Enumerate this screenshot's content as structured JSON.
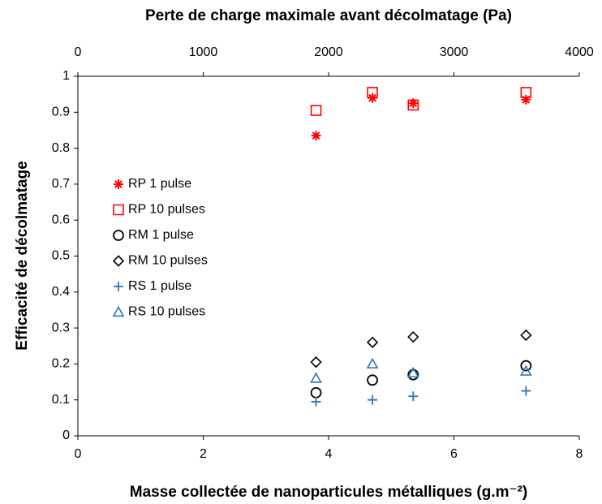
{
  "chart_data": {
    "type": "scatter",
    "title": "Perte de charge maximale avant décolmatage (Pa)",
    "xlabel": "Masse collectée de nanoparticules métalliques (g.m⁻²)",
    "ylabel": "Efficacité de décolmatage",
    "x": [
      3.8,
      4.7,
      5.35,
      7.15
    ],
    "xlim": [
      0,
      8
    ],
    "xticks": [
      0,
      2,
      4,
      6,
      8
    ],
    "x2lim": [
      0,
      4000
    ],
    "x2ticks": [
      0,
      1000,
      2000,
      3000,
      4000
    ],
    "ylim": [
      0,
      1
    ],
    "yticks": [
      0,
      0.1,
      0.2,
      0.3,
      0.4,
      0.5,
      0.6,
      0.7,
      0.8,
      0.9,
      1
    ],
    "grid": false,
    "legend": "center left",
    "series": [
      {
        "name": "RP 1 pulse",
        "color": "#ff0000",
        "marker": "asterisk",
        "values": [
          0.835,
          0.94,
          0.925,
          0.935
        ]
      },
      {
        "name": "RP 10 pulses",
        "color": "#ff0000",
        "marker": "square",
        "values": [
          0.905,
          0.955,
          0.92,
          0.955
        ]
      },
      {
        "name": "RM 1 pulse",
        "color": "#000000",
        "marker": "circle",
        "values": [
          0.12,
          0.155,
          0.17,
          0.195
        ]
      },
      {
        "name": "RM 10 pulses",
        "color": "#000000",
        "marker": "diamond",
        "values": [
          0.205,
          0.26,
          0.275,
          0.28
        ]
      },
      {
        "name": "RS 1 pulse",
        "color": "#2e75b6",
        "marker": "plus",
        "values": [
          0.095,
          0.1,
          0.11,
          0.125
        ]
      },
      {
        "name": "RS 10 pulses",
        "color": "#2e75b6",
        "marker": "triangle",
        "values": [
          0.16,
          0.2,
          0.175,
          0.18
        ]
      }
    ]
  }
}
